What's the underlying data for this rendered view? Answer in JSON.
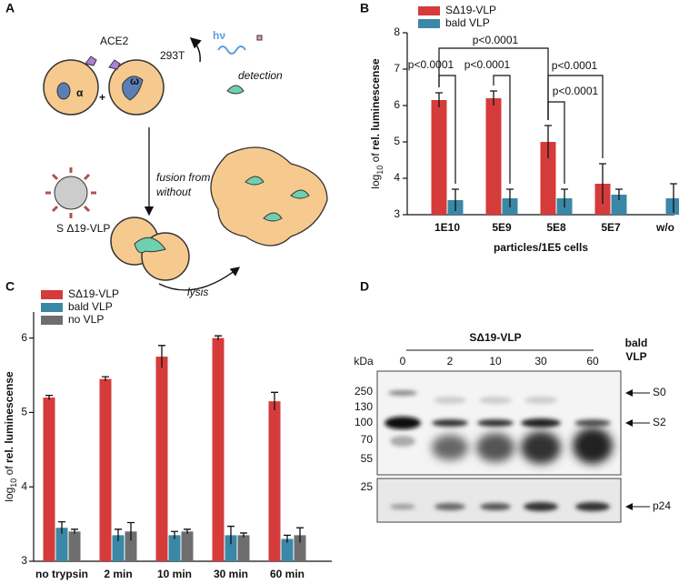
{
  "panel_labels": [
    "A",
    "B",
    "C",
    "D"
  ],
  "panel_a": {
    "receptor": "ACE2",
    "cell": "293T",
    "alpha": "α",
    "omega": "ω",
    "plus": "+",
    "light": "hν",
    "detection": "detection",
    "fusion": [
      "fusion from",
      "without"
    ],
    "vlp": "S Δ19-VLP",
    "lysis": "lysis"
  },
  "chart_data": [
    {
      "type": "bar",
      "ylabel_parts": [
        "log",
        "10",
        " of ",
        "rel. luminescense"
      ],
      "xlabel": "particles/1E5 cells",
      "categories": [
        "1E10",
        "5E9",
        "5E8",
        "5E7",
        "w/o"
      ],
      "series": [
        {
          "name": "SΔ19-VLP",
          "color": "#d63b3b",
          "values": [
            6.15,
            6.2,
            5.0,
            3.85,
            null
          ],
          "errors": [
            0.2,
            0.2,
            0.45,
            0.55,
            null
          ]
        },
        {
          "name": "bald VLP",
          "color": "#3b87a6",
          "values": [
            3.4,
            3.45,
            3.45,
            3.55,
            3.45
          ],
          "errors": [
            0.3,
            0.25,
            0.25,
            0.15,
            0.4
          ]
        }
      ],
      "ylim": [
        3,
        8
      ],
      "yticks": [
        3,
        4,
        5,
        6,
        7,
        8
      ],
      "annotations": [
        "p<0.0001",
        "p<0.0001",
        "p<0.0001",
        "p<0.0001",
        "p<0.0001"
      ]
    },
    {
      "type": "bar",
      "ylabel_parts": [
        "log",
        "10",
        " of ",
        "rel. luminescense"
      ],
      "categories": [
        "no trypsin",
        "2 min",
        "10 min",
        "30 min",
        "60 min"
      ],
      "series": [
        {
          "name": "SΔ19-VLP",
          "color": "#d63b3b",
          "values": [
            5.2,
            5.45,
            5.75,
            6.0,
            5.15
          ],
          "errors": [
            0.03,
            0.03,
            0.15,
            0.03,
            0.12
          ]
        },
        {
          "name": "bald VLP",
          "color": "#3b87a6",
          "values": [
            3.45,
            3.35,
            3.35,
            3.35,
            3.3
          ],
          "errors": [
            0.08,
            0.08,
            0.05,
            0.12,
            0.05
          ]
        },
        {
          "name": "no VLP",
          "color": "#6e6e6e",
          "values": [
            3.4,
            3.4,
            3.4,
            3.35,
            3.35
          ],
          "errors": [
            0.03,
            0.12,
            0.03,
            0.03,
            0.1
          ]
        }
      ],
      "ylim": [
        3,
        6.35
      ],
      "yticks": [
        3,
        4,
        5,
        6
      ]
    }
  ],
  "panel_d": {
    "group": "SΔ19-VLP",
    "control": [
      "bald",
      "VLP"
    ],
    "unit": "kDa",
    "lanes": [
      "0",
      "2",
      "10",
      "30",
      "60"
    ],
    "markers": [
      "250",
      "130",
      "100",
      "70",
      "55",
      "25"
    ],
    "bands": [
      "S0",
      "S2",
      "p24"
    ]
  }
}
